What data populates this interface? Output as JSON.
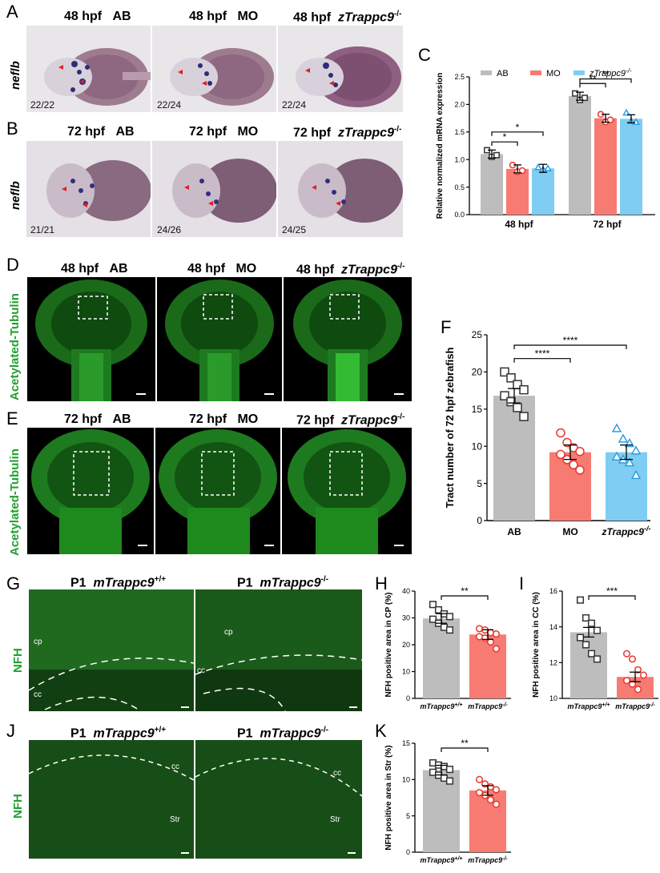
{
  "panel_letters": {
    "A": "A",
    "B": "B",
    "C": "C",
    "D": "D",
    "E": "E",
    "F": "F",
    "G": "G",
    "H": "H",
    "I": "I",
    "J": "J",
    "K": "K"
  },
  "row_a": {
    "headers": [
      {
        "time": "48 hpf",
        "group": "AB",
        "italic": false
      },
      {
        "time": "48 hpf",
        "group": "MO",
        "italic": false
      },
      {
        "time": "48 hpf",
        "group": "zTrappc9",
        "sup": "-/-",
        "italic": true
      }
    ],
    "gene_label": "neflb",
    "counts": [
      "22/22",
      "22/24",
      "22/24"
    ]
  },
  "row_b": {
    "headers": [
      {
        "time": "72 hpf",
        "group": "AB",
        "italic": false
      },
      {
        "time": "72 hpf",
        "group": "MO",
        "italic": false
      },
      {
        "time": "72 hpf",
        "group": "zTrappc9",
        "sup": "-/-",
        "italic": true
      }
    ],
    "gene_label": "neflb",
    "counts": [
      "21/21",
      "24/26",
      "24/25"
    ]
  },
  "row_d": {
    "headers": [
      {
        "time": "48 hpf",
        "group": "AB",
        "italic": false
      },
      {
        "time": "48 hpf",
        "group": "MO",
        "italic": false
      },
      {
        "time": "48 hpf",
        "group": "zTrappc9",
        "sup": "-/-",
        "italic": true
      }
    ],
    "stain_label": "Acetylated-Tubulin"
  },
  "row_e": {
    "headers": [
      {
        "time": "72 hpf",
        "group": "AB",
        "italic": false
      },
      {
        "time": "72 hpf",
        "group": "MO",
        "italic": false
      },
      {
        "time": "72 hpf",
        "group": "zTrappc9",
        "sup": "-/-",
        "italic": true
      }
    ],
    "stain_label": "Acetylated-Tubulin"
  },
  "row_g": {
    "headers": [
      {
        "time": "P1",
        "group": "mTrappc9",
        "sup": "+/+"
      },
      {
        "time": "P1",
        "group": "mTrappc9",
        "sup": "-/-"
      }
    ],
    "stain_label": "NFH",
    "region_labels": {
      "cp": "cp",
      "cc": "cc"
    }
  },
  "row_j": {
    "headers": [
      {
        "time": "P1",
        "group": "mTrappc9",
        "sup": "+/+"
      },
      {
        "time": "P1",
        "group": "mTrappc9",
        "sup": "-/-"
      }
    ],
    "stain_label": "NFH",
    "region_labels": {
      "cc": "cc",
      "str": "Str"
    }
  },
  "colors": {
    "ab": "#bdbdbd",
    "mo": "#f77b72",
    "ztrappc9": "#7fcdf2",
    "mo_pt": "#e8362a",
    "z_pt": "#2a9fe0",
    "green": "#22a030"
  },
  "chart_data": [
    {
      "panel": "C",
      "type": "bar",
      "ylabel": "Relative normalized mRNA expression",
      "categories": [
        "48 hpf",
        "72 hpf"
      ],
      "ylim": [
        0,
        2.5
      ],
      "yticks": [
        "0.0",
        "0.5",
        "1.0",
        "1.5",
        "2.0",
        "2.5"
      ],
      "legend": [
        "AB",
        "MO",
        "zTrappc9"
      ],
      "legend_sup": "-/-",
      "series": [
        {
          "name": "AB",
          "values": [
            1.1,
            2.15
          ],
          "points": [
            [
              1.17,
              1.05,
              1.08
            ],
            [
              2.2,
              2.08,
              2.12
            ]
          ]
        },
        {
          "name": "MO",
          "values": [
            0.83,
            1.75
          ],
          "points": [
            [
              0.9,
              0.78,
              0.8
            ],
            [
              1.82,
              1.68,
              1.72
            ]
          ]
        },
        {
          "name": "zTrappc9",
          "values": [
            0.84,
            1.74
          ],
          "points": [
            [
              0.86,
              0.82,
              0.84
            ],
            [
              1.85,
              1.7,
              1.68
            ]
          ]
        }
      ],
      "sig": [
        {
          "text": "*"
        },
        {
          "text": "*"
        },
        {
          "text": "**"
        },
        {
          "text": "**"
        }
      ]
    },
    {
      "panel": "F",
      "type": "bar",
      "ylabel": "Tract number of 72 hpf zebrafish",
      "categories": [
        "AB",
        "MO",
        "zTrappc9"
      ],
      "cat_sup": "-/-",
      "ylim": [
        0,
        25
      ],
      "yticks": [
        "0",
        "5",
        "10",
        "15",
        "20",
        "25"
      ],
      "values": [
        16.8,
        9.2,
        9.2
      ],
      "points": [
        [
          20.0,
          19.2,
          18.3,
          17.6,
          16.8,
          16.0,
          15.2,
          14.0
        ],
        [
          11.8,
          10.5,
          9.8,
          9.3,
          8.9,
          8.2,
          7.5,
          6.8
        ],
        [
          12.4,
          11.0,
          10.4,
          9.4,
          8.6,
          8.2,
          7.8,
          6.1
        ]
      ],
      "sig": [
        {
          "text": "****"
        },
        {
          "text": "****"
        }
      ]
    },
    {
      "panel": "H",
      "type": "bar",
      "ylabel": "NFH positive area in CP (%)",
      "categories": [
        "mTrappc9",
        "mTrappc9"
      ],
      "cat_sups": [
        "+/+",
        "-/-"
      ],
      "ylim": [
        0,
        40
      ],
      "yticks": [
        "0",
        "10",
        "20",
        "30",
        "40"
      ],
      "values": [
        29.8,
        23.8
      ],
      "points": [
        [
          35.0,
          33.0,
          31.5,
          30.5,
          29.5,
          28.0,
          26.5,
          25.5
        ],
        [
          26.0,
          25.5,
          24.5,
          24.0,
          23.0,
          22.5,
          21.0,
          18.5
        ]
      ],
      "sig": [
        {
          "text": "**"
        }
      ]
    },
    {
      "panel": "I",
      "type": "bar",
      "ylabel": "NFH positive area in CC (%)",
      "categories": [
        "mTrappc9",
        "mTrappc9"
      ],
      "cat_sups": [
        "+/+",
        "-/-"
      ],
      "ylim": [
        10,
        16
      ],
      "yticks": [
        "10",
        "12",
        "14",
        "16"
      ],
      "values": [
        13.7,
        11.2
      ],
      "points": [
        [
          15.5,
          14.5,
          14.2,
          13.8,
          13.4,
          13.0,
          12.5,
          12.2
        ],
        [
          12.5,
          12.2,
          11.6,
          11.3,
          11.0,
          10.8,
          10.5
        ]
      ],
      "sig": [
        {
          "text": "***"
        }
      ]
    },
    {
      "panel": "K",
      "type": "bar",
      "ylabel": "NFH positive area in Str (%)",
      "categories": [
        "mTrappc9",
        "mTrappc9"
      ],
      "cat_sups": [
        "+/+",
        "-/-"
      ],
      "ylim": [
        0,
        15
      ],
      "yticks": [
        "0",
        "5",
        "10",
        "15"
      ],
      "values": [
        11.3,
        8.5
      ],
      "points": [
        [
          12.3,
          12.0,
          11.8,
          11.4,
          11.0,
          10.6,
          10.2,
          9.8
        ],
        [
          10.0,
          9.4,
          9.0,
          8.6,
          8.2,
          7.8,
          7.2,
          6.6
        ]
      ],
      "sig": [
        {
          "text": "**"
        }
      ]
    }
  ]
}
